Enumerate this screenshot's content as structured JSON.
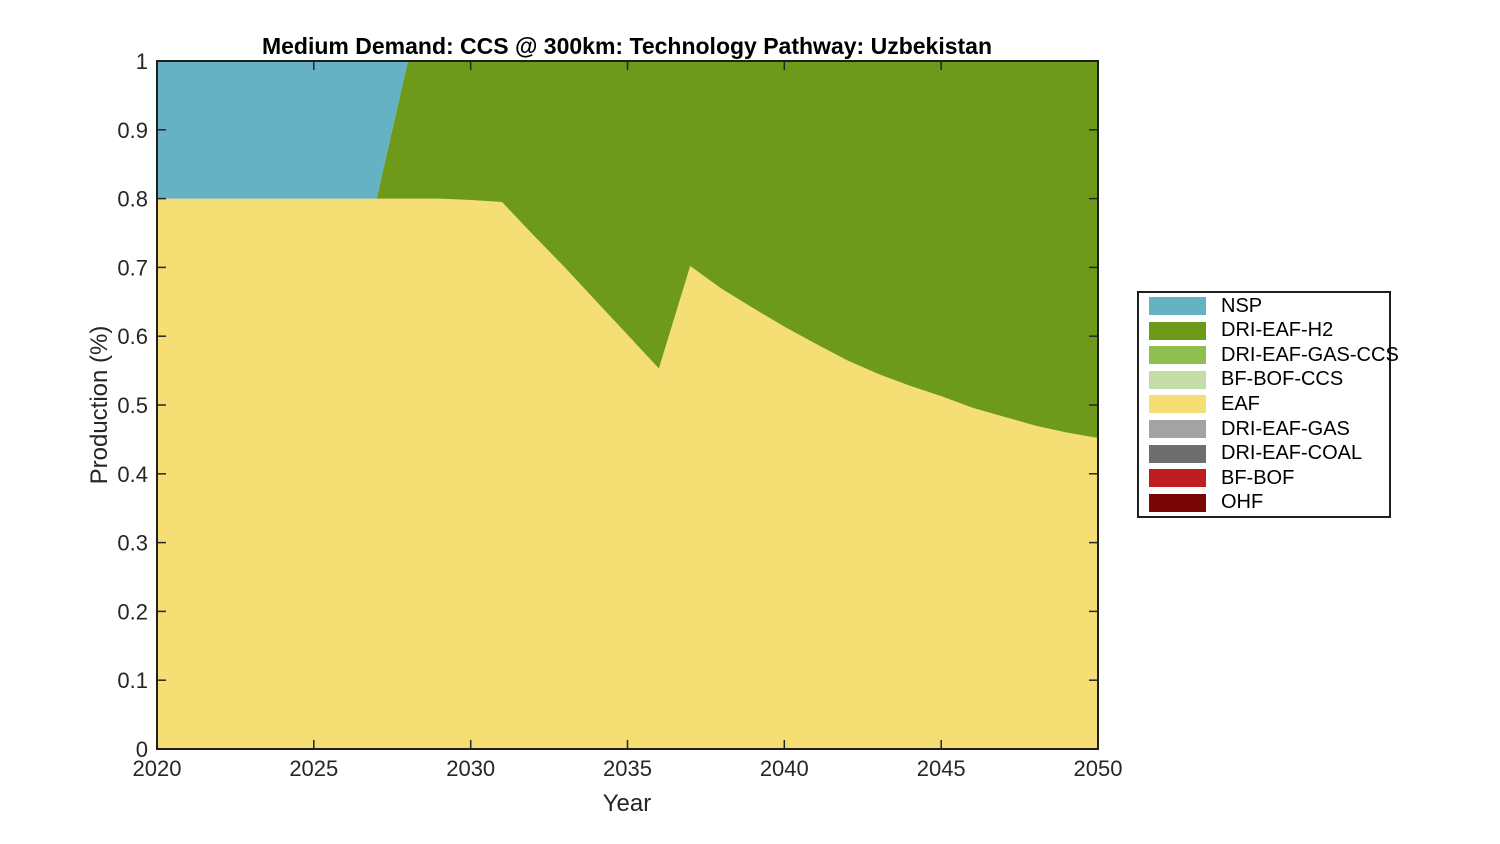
{
  "title": "Medium Demand: CCS @ 300km: Technology Pathway: Uzbekistan",
  "colors": {
    "background": "#ffffff",
    "axis": "#262626",
    "title_text": "#000000",
    "nsp": "#65B2C5",
    "dri_eaf_h2": "#6E9A1B",
    "dri_eaf_gas_ccs": "#8FC04F",
    "bf_bof_ccs": "#C4DDA6",
    "eaf": "#F5DE74",
    "dri_eaf_gas": "#A3A3A3",
    "dri_eaf_coal": "#6E6E6E",
    "bf_bof": "#C01E1E",
    "ohf": "#7A0505"
  },
  "chart_data": {
    "type": "area",
    "stacked": true,
    "title": "Medium Demand: CCS @ 300km: Technology Pathway: Uzbekistan",
    "xlabel": "Year",
    "ylabel": "Production (%)",
    "xlim": [
      2020,
      2050
    ],
    "ylim": [
      0,
      1
    ],
    "grid": false,
    "legend_position": "outside-right",
    "xticks": [
      2020,
      2025,
      2030,
      2035,
      2040,
      2045,
      2050
    ],
    "yticks": [
      "0",
      "0.1",
      "0.2",
      "0.3",
      "0.4",
      "0.5",
      "0.6",
      "0.7",
      "0.8",
      "0.9",
      "1"
    ],
    "x": [
      2020,
      2021,
      2022,
      2023,
      2024,
      2025,
      2026,
      2027,
      2028,
      2029,
      2030,
      2031,
      2032,
      2033,
      2034,
      2035,
      2036,
      2037,
      2038,
      2039,
      2040,
      2041,
      2042,
      2043,
      2044,
      2045,
      2046,
      2047,
      2048,
      2049,
      2050
    ],
    "stack_order_note": "series listed bottom-to-top",
    "series": [
      {
        "name": "OHF",
        "color": "#7A0505",
        "values": [
          0,
          0,
          0,
          0,
          0,
          0,
          0,
          0,
          0,
          0,
          0,
          0,
          0,
          0,
          0,
          0,
          0,
          0,
          0,
          0,
          0,
          0,
          0,
          0,
          0,
          0,
          0,
          0,
          0,
          0,
          0
        ]
      },
      {
        "name": "BF-BOF",
        "color": "#C01E1E",
        "values": [
          0,
          0,
          0,
          0,
          0,
          0,
          0,
          0,
          0,
          0,
          0,
          0,
          0,
          0,
          0,
          0,
          0,
          0,
          0,
          0,
          0,
          0,
          0,
          0,
          0,
          0,
          0,
          0,
          0,
          0,
          0
        ]
      },
      {
        "name": "DRI-EAF-COAL",
        "color": "#6E6E6E",
        "values": [
          0,
          0,
          0,
          0,
          0,
          0,
          0,
          0,
          0,
          0,
          0,
          0,
          0,
          0,
          0,
          0,
          0,
          0,
          0,
          0,
          0,
          0,
          0,
          0,
          0,
          0,
          0,
          0,
          0,
          0,
          0
        ]
      },
      {
        "name": "DRI-EAF-GAS",
        "color": "#A3A3A3",
        "values": [
          0,
          0,
          0,
          0,
          0,
          0,
          0,
          0,
          0,
          0,
          0,
          0,
          0,
          0,
          0,
          0,
          0,
          0,
          0,
          0,
          0,
          0,
          0,
          0,
          0,
          0,
          0,
          0,
          0,
          0,
          0
        ]
      },
      {
        "name": "EAF",
        "color": "#F5DE74",
        "values": [
          0.8,
          0.8,
          0.8,
          0.8,
          0.8,
          0.8,
          0.8,
          0.8,
          0.8,
          0.8,
          0.798,
          0.795,
          0.747,
          0.7,
          0.651,
          0.602,
          0.553,
          0.702,
          0.669,
          0.641,
          0.614,
          0.589,
          0.565,
          0.545,
          0.528,
          0.513,
          0.496,
          0.483,
          0.47,
          0.46,
          0.452
        ]
      },
      {
        "name": "BF-BOF-CCS",
        "color": "#C4DDA6",
        "values": [
          0,
          0,
          0,
          0,
          0,
          0,
          0,
          0,
          0,
          0,
          0,
          0,
          0,
          0,
          0,
          0,
          0,
          0,
          0,
          0,
          0,
          0,
          0,
          0,
          0,
          0,
          0,
          0,
          0,
          0,
          0
        ]
      },
      {
        "name": "DRI-EAF-GAS-CCS",
        "color": "#8FC04F",
        "values": [
          0,
          0,
          0,
          0,
          0,
          0,
          0,
          0,
          0,
          0,
          0,
          0,
          0,
          0,
          0,
          0,
          0,
          0,
          0,
          0,
          0,
          0,
          0,
          0,
          0,
          0,
          0,
          0,
          0,
          0,
          0
        ]
      },
      {
        "name": "DRI-EAF-H2",
        "color": "#6E9A1B",
        "values": [
          0,
          0,
          0,
          0,
          0,
          0,
          0,
          0,
          0.2,
          0.2,
          0.202,
          0.205,
          0.253,
          0.3,
          0.349,
          0.398,
          0.447,
          0.298,
          0.331,
          0.359,
          0.386,
          0.411,
          0.435,
          0.455,
          0.472,
          0.487,
          0.504,
          0.517,
          0.53,
          0.54,
          0.548
        ]
      },
      {
        "name": "NSP",
        "color": "#65B2C5",
        "values": [
          0.2,
          0.2,
          0.2,
          0.2,
          0.2,
          0.2,
          0.2,
          0.2,
          0,
          0,
          0,
          0,
          0,
          0,
          0,
          0,
          0,
          0,
          0,
          0,
          0,
          0,
          0,
          0,
          0,
          0,
          0,
          0,
          0,
          0,
          0
        ]
      }
    ]
  },
  "legend": {
    "entries": [
      {
        "label": "NSP",
        "color": "#65B2C5"
      },
      {
        "label": "DRI-EAF-H2",
        "color": "#6E9A1B"
      },
      {
        "label": "DRI-EAF-GAS-CCS",
        "color": "#8FC04F"
      },
      {
        "label": "BF-BOF-CCS",
        "color": "#C4DDA6"
      },
      {
        "label": "EAF",
        "color": "#F5DE74"
      },
      {
        "label": "DRI-EAF-GAS",
        "color": "#A3A3A3"
      },
      {
        "label": "DRI-EAF-COAL",
        "color": "#6E6E6E"
      },
      {
        "label": "BF-BOF",
        "color": "#C01E1E"
      },
      {
        "label": "OHF",
        "color": "#7A0505"
      }
    ]
  }
}
